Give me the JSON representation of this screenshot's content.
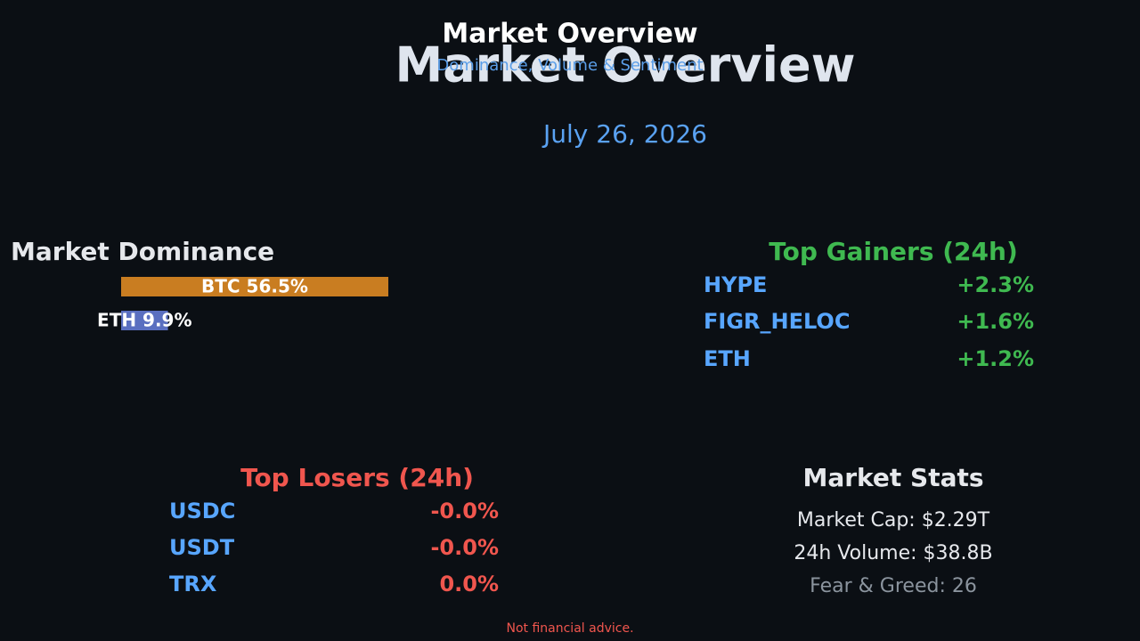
{
  "header": {
    "title": "Market Overview",
    "subtitle": "Dominance, Volume & Sentiment",
    "banner": "Market Overview",
    "date": "July 26, 2026"
  },
  "dominance": {
    "title": "Market Dominance",
    "items": [
      {
        "label": "BTC 56.5%",
        "value": 56.5,
        "color": "#c97d21"
      },
      {
        "label": "ETH 9.9%",
        "value": 9.9,
        "color": "#5a6fc0"
      }
    ]
  },
  "gainers": {
    "title": "Top Gainers (24h)",
    "rows": [
      [
        "HYPE",
        "+2.3%"
      ],
      [
        "FIGR_HELOC",
        "+1.6%"
      ],
      [
        "ETH",
        "+1.2%"
      ]
    ]
  },
  "losers": {
    "title": "Top Losers (24h)",
    "rows": [
      [
        "USDC",
        "-0.0%"
      ],
      [
        "USDT",
        "-0.0%"
      ],
      [
        "TRX",
        "0.0%"
      ]
    ]
  },
  "stats": {
    "title": "Market Stats",
    "lines": [
      "Market Cap: $2.29T",
      "24h Volume: $38.8B",
      "Fear & Greed: 26"
    ]
  },
  "footer": "Not financial advice."
}
